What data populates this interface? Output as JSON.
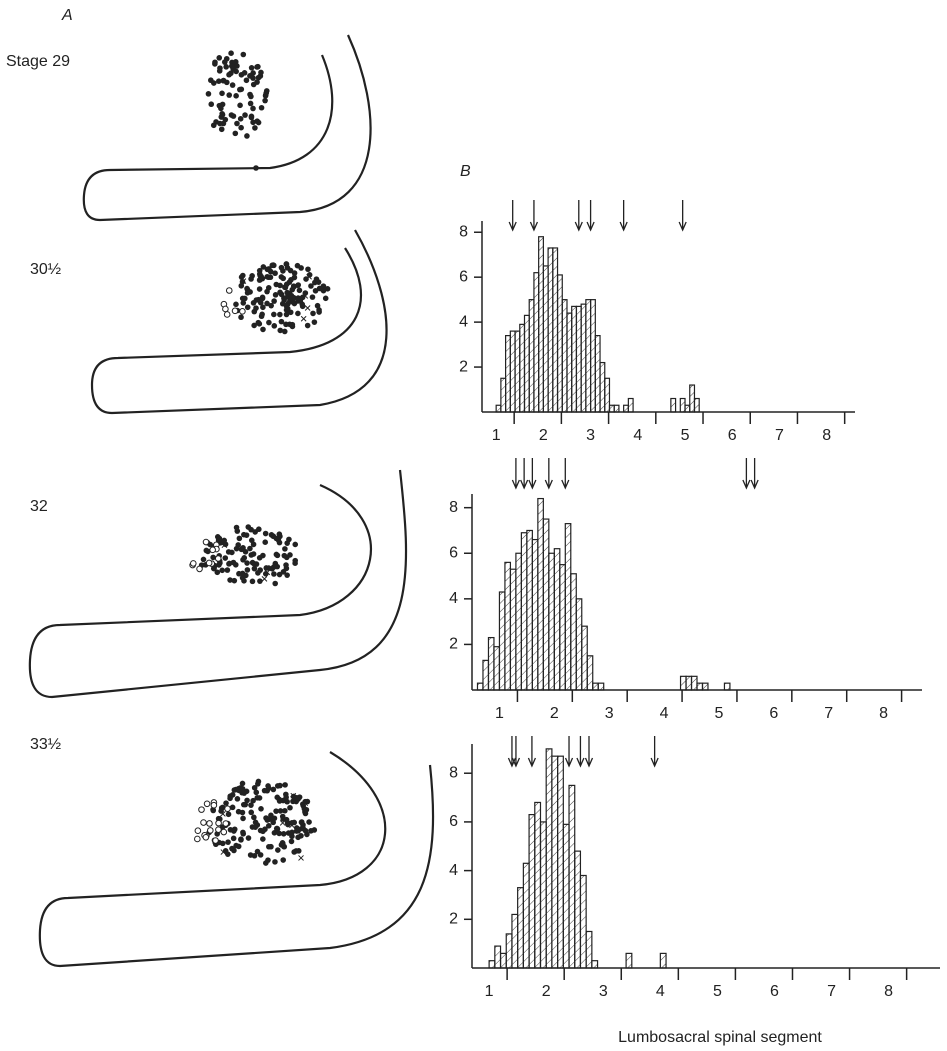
{
  "panel_labels": {
    "a": "A",
    "b": "B"
  },
  "stages": [
    "Stage 29",
    "30½",
    "32",
    "33½"
  ],
  "chart_data": [
    {
      "type": "histogram",
      "bins": [
        1.0,
        1.1,
        1.2,
        1.3,
        1.4,
        1.5,
        1.6,
        1.7,
        1.8,
        1.9,
        2.0,
        2.1,
        2.2,
        2.3,
        2.4,
        2.5,
        2.6,
        2.7,
        2.8,
        2.9,
        3.0,
        3.1,
        3.2,
        3.3,
        3.4,
        3.5,
        3.6,
        3.7,
        3.8,
        3.9,
        4.0,
        4.1,
        4.2,
        4.3,
        4.4,
        4.5,
        4.6,
        4.7,
        4.8,
        4.9,
        5.0,
        5.1,
        5.2,
        5.3,
        5.4,
        5.5
      ],
      "values": [
        0.3,
        1.5,
        3.4,
        3.6,
        3.6,
        3.9,
        4.3,
        5.0,
        6.2,
        7.8,
        6.5,
        7.3,
        7.3,
        6.1,
        5.0,
        4.4,
        4.7,
        4.7,
        4.8,
        5.0,
        5.0,
        3.4,
        2.2,
        1.5,
        0.3,
        0.3,
        0,
        0.3,
        0.6,
        0,
        0,
        0,
        0,
        0,
        0,
        0,
        0,
        0.6,
        0,
        0.6,
        0.3,
        1.2,
        0.6,
        0,
        0
      ],
      "arrows": [
        1.35,
        1.8,
        2.75,
        3.0,
        3.7,
        4.95
      ],
      "xlim": [
        0.7,
        8.6
      ],
      "ylim": [
        0,
        8.5
      ],
      "xticks": [
        1,
        2,
        3,
        4,
        5,
        6,
        7,
        8
      ],
      "yticks": [
        2,
        4,
        6,
        8
      ]
    },
    {
      "type": "histogram",
      "bins": [
        0.6,
        0.7,
        0.8,
        0.9,
        1.0,
        1.1,
        1.2,
        1.3,
        1.4,
        1.5,
        1.6,
        1.7,
        1.8,
        1.9,
        2.0,
        2.1,
        2.2,
        2.3,
        2.4,
        2.5,
        2.6,
        2.7,
        2.8,
        2.9,
        3.0,
        3.1,
        3.2,
        3.3,
        3.4,
        3.5,
        3.6,
        3.7,
        3.8,
        3.9,
        4.0,
        4.1,
        4.2,
        4.3,
        4.4,
        4.5,
        4.6,
        4.7,
        4.8,
        4.9,
        5.0,
        5.1,
        5.2,
        5.3
      ],
      "values": [
        0.3,
        1.3,
        2.3,
        1.9,
        4.3,
        5.6,
        5.3,
        6.0,
        6.9,
        7.0,
        6.6,
        8.4,
        7.5,
        6.0,
        6.2,
        5.5,
        7.3,
        5.1,
        4.0,
        2.8,
        1.5,
        0.3,
        0.3,
        0,
        0,
        0,
        0,
        0,
        0,
        0,
        0,
        0,
        0,
        0,
        0,
        0,
        0,
        0.6,
        0.6,
        0.6,
        0.3,
        0.3,
        0,
        0,
        0,
        0.3,
        0
      ],
      "arrows": [
        1.3,
        1.45,
        1.6,
        1.9,
        2.2,
        5.5,
        5.65
      ],
      "xlim": [
        0.5,
        8.7
      ],
      "ylim": [
        0,
        8.6
      ],
      "xticks": [
        1,
        2,
        3,
        4,
        5,
        6,
        7,
        8
      ],
      "yticks": [
        2,
        4,
        6,
        8
      ]
    },
    {
      "type": "histogram",
      "bins": [
        1.0,
        1.1,
        1.2,
        1.3,
        1.4,
        1.5,
        1.6,
        1.7,
        1.8,
        1.9,
        2.0,
        2.1,
        2.2,
        2.3,
        2.4,
        2.5,
        2.6,
        2.7,
        2.8,
        2.9,
        3.0,
        3.1,
        3.2,
        3.3,
        3.4,
        3.5,
        3.6,
        3.7,
        3.8,
        3.9,
        4.0,
        4.1,
        4.2
      ],
      "values": [
        0.3,
        0.9,
        0.6,
        1.4,
        2.2,
        3.3,
        4.3,
        6.3,
        6.8,
        6.0,
        9.0,
        8.7,
        8.7,
        5.9,
        7.5,
        4.8,
        3.8,
        1.5,
        0.3,
        0,
        0,
        0,
        0,
        0,
        0.6,
        0,
        0,
        0,
        0,
        0,
        0.6,
        0
      ],
      "arrows": [
        1.4,
        1.47,
        1.75,
        2.4,
        2.6,
        2.75,
        3.9
      ],
      "xlim": [
        0.7,
        8.9
      ],
      "ylim": [
        0,
        9.2
      ],
      "xticks": [
        1,
        2,
        3,
        4,
        5,
        6,
        7,
        8
      ],
      "yticks": [
        2,
        4,
        6,
        8
      ],
      "xlabel": "Lumbosacral spinal segment"
    }
  ]
}
